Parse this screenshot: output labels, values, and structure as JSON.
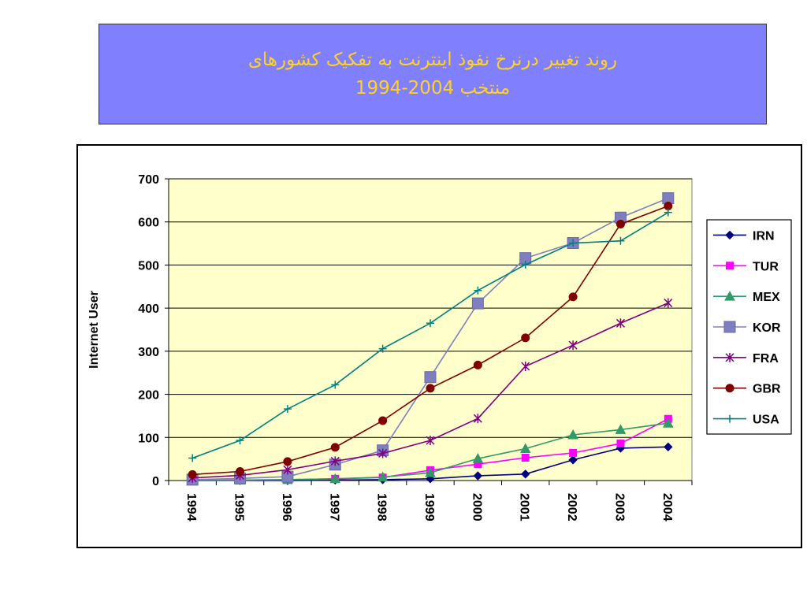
{
  "header": {
    "title_line1": "روند تغییر درنرخ نفوذ اینترنت به تفکیک کشورهای",
    "title_line2": "منتخب 2004-1994"
  },
  "chart_data": {
    "type": "line",
    "title": "",
    "xlabel": "",
    "ylabel": "Internet User",
    "categories": [
      "1994",
      "1995",
      "1996",
      "1997",
      "1998",
      "1999",
      "2000",
      "2001",
      "2002",
      "2003",
      "2004"
    ],
    "ylim": [
      0,
      700
    ],
    "yticks": [
      0,
      100,
      200,
      300,
      400,
      500,
      600,
      700
    ],
    "grid": "horizontal",
    "plot_background": "#ffffcc",
    "legend_position": "right",
    "series": [
      {
        "name": "IRN",
        "color": "#000080",
        "marker": "diamond",
        "values": [
          0,
          0,
          0,
          1,
          2,
          4,
          11,
          15,
          48,
          75,
          78
        ]
      },
      {
        "name": "TUR",
        "color": "#ff00ff",
        "marker": "square",
        "values": [
          0,
          1,
          2,
          4,
          7,
          24,
          38,
          53,
          64,
          86,
          143
        ]
      },
      {
        "name": "MEX",
        "color": "#339966",
        "marker": "triangle",
        "values": [
          0,
          1,
          2,
          4,
          8,
          18,
          51,
          74,
          106,
          118,
          133
        ]
      },
      {
        "name": "KOR",
        "color": "#7f7fbf",
        "marker": "bigsquare",
        "values": [
          2,
          5,
          9,
          37,
          70,
          240,
          411,
          516,
          551,
          610,
          655
        ]
      },
      {
        "name": "FRA",
        "color": "#800080",
        "marker": "star",
        "values": [
          6,
          12,
          25,
          45,
          63,
          93,
          144,
          265,
          314,
          365,
          412
        ]
      },
      {
        "name": "GBR",
        "color": "#800000",
        "marker": "circle",
        "values": [
          14,
          21,
          44,
          77,
          139,
          214,
          268,
          331,
          426,
          595,
          637
        ]
      },
      {
        "name": "USA",
        "color": "#008080",
        "marker": "plus",
        "values": [
          52,
          93,
          166,
          222,
          306,
          365,
          441,
          501,
          551,
          556,
          622
        ]
      }
    ]
  }
}
